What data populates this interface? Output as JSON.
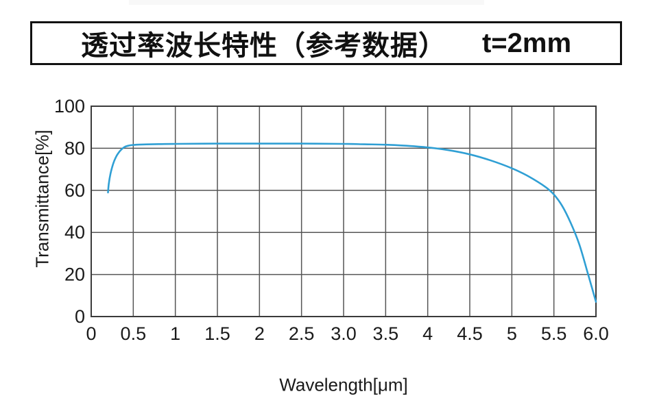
{
  "title": {
    "main": "透过率波长特性（参考数据）",
    "thickness": "t=2mm"
  },
  "colors": {
    "curve": "#2f9fd4",
    "grid": "#555555",
    "border": "#3a3a3a",
    "text": "#1a1a1a",
    "title_border": "#111111",
    "top_strip": "#f8f8f8"
  },
  "chart_data": {
    "type": "line",
    "title": "透过率波长特性（参考数据） t=2mm",
    "xlabel": "Wavelength[μm]",
    "ylabel": "Transmittance[%]",
    "xlim": [
      0,
      6
    ],
    "ylim": [
      0,
      100
    ],
    "grid": true,
    "legend": "none",
    "x_tick_values": [
      0,
      0.5,
      1,
      1.5,
      2,
      2.5,
      3,
      3.5,
      4,
      4.5,
      5,
      5.5,
      6
    ],
    "x_tick_labels": [
      "0",
      "0.5",
      "1",
      "1.5",
      "2",
      "2.5",
      "3.0",
      "3.5",
      "4",
      "4.5",
      "5",
      "5.5",
      "6.0"
    ],
    "y_tick_values": [
      0,
      20,
      40,
      60,
      80,
      100
    ],
    "y_tick_labels": [
      "0",
      "20",
      "40",
      "60",
      "80",
      "100"
    ],
    "series": [
      {
        "name": "transmittance",
        "color": "#2f9fd4",
        "points": [
          [
            0.2,
            59
          ],
          [
            0.21,
            63.5
          ],
          [
            0.23,
            68
          ],
          [
            0.26,
            72.5
          ],
          [
            0.29,
            75.5
          ],
          [
            0.32,
            77.6
          ],
          [
            0.36,
            79.5
          ],
          [
            0.4,
            80.7
          ],
          [
            0.45,
            81.3
          ],
          [
            0.5,
            81.6
          ],
          [
            0.6,
            81.8
          ],
          [
            0.8,
            82
          ],
          [
            1.0,
            82.1
          ],
          [
            1.5,
            82.2
          ],
          [
            2.0,
            82.2
          ],
          [
            2.5,
            82.2
          ],
          [
            3.0,
            82.1
          ],
          [
            3.25,
            81.9
          ],
          [
            3.5,
            81.7
          ],
          [
            3.75,
            81.2
          ],
          [
            4.0,
            80.4
          ],
          [
            4.25,
            79.1
          ],
          [
            4.5,
            77.1
          ],
          [
            4.75,
            74.2
          ],
          [
            5.0,
            70.5
          ],
          [
            5.2,
            66.6
          ],
          [
            5.4,
            61.6
          ],
          [
            5.5,
            58
          ],
          [
            5.6,
            52.5
          ],
          [
            5.7,
            44.5
          ],
          [
            5.8,
            34.5
          ],
          [
            5.9,
            21
          ],
          [
            5.95,
            14
          ],
          [
            6.0,
            7
          ]
        ]
      }
    ]
  }
}
